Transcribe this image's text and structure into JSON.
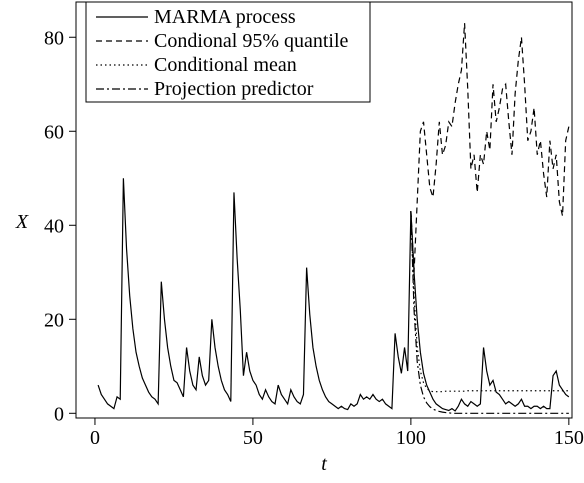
{
  "chart_data": {
    "type": "line",
    "y_label": "X",
    "x_label": "t",
    "x": [
      1,
      2,
      3,
      4,
      5,
      6,
      7,
      8,
      9,
      10,
      11,
      12,
      13,
      14,
      15,
      16,
      17,
      18,
      19,
      20,
      21,
      22,
      23,
      24,
      25,
      26,
      27,
      28,
      29,
      30,
      31,
      32,
      33,
      34,
      35,
      36,
      37,
      38,
      39,
      40,
      41,
      42,
      43,
      44,
      45,
      46,
      47,
      48,
      49,
      50,
      51,
      52,
      53,
      54,
      55,
      56,
      57,
      58,
      59,
      60,
      61,
      62,
      63,
      64,
      65,
      66,
      67,
      68,
      69,
      70,
      71,
      72,
      73,
      74,
      75,
      76,
      77,
      78,
      79,
      80,
      81,
      82,
      83,
      84,
      85,
      86,
      87,
      88,
      89,
      90,
      91,
      92,
      93,
      94,
      95,
      96,
      97,
      98,
      99,
      100,
      101,
      102,
      103,
      104,
      105,
      106,
      107,
      108,
      109,
      110,
      111,
      112,
      113,
      114,
      115,
      116,
      117,
      118,
      119,
      120,
      121,
      122,
      123,
      124,
      125,
      126,
      127,
      128,
      129,
      130,
      131,
      132,
      133,
      134,
      135,
      136,
      137,
      138,
      139,
      140,
      141,
      142,
      143,
      144,
      145,
      146,
      147,
      148,
      149,
      150
    ],
    "series": [
      {
        "name": "MARMA process",
        "color": "#000000",
        "dash": "none",
        "values": [
          6,
          4,
          3,
          2,
          1.5,
          1,
          3.5,
          3,
          50,
          35,
          25,
          18,
          13,
          10,
          7.5,
          6,
          4.5,
          3.5,
          3,
          2,
          28,
          20,
          14,
          10,
          7,
          6.5,
          5,
          3.5,
          14,
          9,
          6,
          5,
          12,
          8,
          6,
          7,
          20,
          14,
          10,
          7,
          5,
          4,
          2.5,
          47,
          33,
          22,
          8,
          13,
          9,
          7,
          6,
          4,
          3,
          5,
          3.5,
          2.5,
          2,
          6,
          4,
          3,
          2,
          5,
          3.5,
          2.5,
          2,
          4,
          31,
          21,
          14,
          10,
          7,
          5,
          3.5,
          2.5,
          2,
          1.5,
          1,
          1.5,
          1,
          0.8,
          2,
          1.5,
          2,
          4,
          3,
          3.5,
          3,
          4,
          3,
          2.5,
          3,
          2,
          1.5,
          1,
          17,
          12,
          8.5,
          14,
          9,
          43,
          30,
          20,
          13,
          8.5,
          6,
          4.5,
          3,
          2,
          1.5,
          1,
          0.8,
          0.6,
          1,
          0.5,
          1.5,
          3,
          2,
          1.5,
          2.5,
          2,
          1.5,
          2,
          14,
          9,
          6,
          7,
          4.5,
          4,
          3,
          2,
          2.5,
          2,
          1.5,
          2,
          3,
          1.5,
          1.5,
          1,
          1.5,
          1.5,
          1,
          1.5,
          1,
          1,
          8,
          9,
          6,
          5,
          4,
          3.5
        ]
      },
      {
        "name": "Condional 95% quantile",
        "color": "#000000",
        "dash": "6,4",
        "x": [
          100,
          101,
          102,
          103,
          104,
          105,
          106,
          107,
          108,
          109,
          110,
          111,
          112,
          113,
          114,
          115,
          116,
          117,
          118,
          119,
          120,
          121,
          122,
          123,
          124,
          125,
          126,
          127,
          128,
          129,
          130,
          131,
          132,
          133,
          134,
          135,
          136,
          137,
          138,
          139,
          140,
          141,
          142,
          143,
          144,
          145,
          146,
          147,
          148,
          149,
          150
        ],
        "values": [
          43,
          30,
          45,
          60,
          62,
          55,
          48,
          46,
          53,
          62,
          55,
          57,
          62,
          61,
          66,
          70,
          73,
          83,
          69,
          52,
          55,
          47,
          55,
          53,
          60,
          56,
          70,
          62,
          65,
          69,
          70,
          62,
          55,
          68,
          75,
          80,
          70,
          58,
          60,
          65,
          55,
          58,
          51,
          46,
          58,
          52,
          55,
          45,
          42,
          58,
          61
        ]
      },
      {
        "name": "Conditional mean",
        "color": "#000000",
        "dash": "1.5,3",
        "x": [
          100,
          101,
          102,
          103,
          104,
          105,
          106,
          107,
          108,
          109,
          110,
          111,
          112,
          113,
          114,
          115,
          116,
          117,
          118,
          119,
          120,
          121,
          122,
          123,
          124,
          125,
          126,
          127,
          128,
          129,
          130,
          131,
          132,
          133,
          134,
          135,
          136,
          137,
          138,
          139,
          140,
          141,
          142,
          143,
          144,
          145,
          146,
          147,
          148,
          149,
          150
        ],
        "values": [
          43,
          25,
          14,
          9,
          6.5,
          5.3,
          4.8,
          4.6,
          4.6,
          4.6,
          4.6,
          4.7,
          4.7,
          4.7,
          4.7,
          4.7,
          4.7,
          4.7,
          4.8,
          4.8,
          4.8,
          4.8,
          4.8,
          4.8,
          4.8,
          4.8,
          4.8,
          4.8,
          4.8,
          4.8,
          4.8,
          4.8,
          4.8,
          4.8,
          4.8,
          4.8,
          4.8,
          4.8,
          4.8,
          4.8,
          4.8,
          4.8,
          4.8,
          4.8,
          4.8,
          4.8,
          4.8,
          4.8,
          4.8,
          4.8,
          4.8
        ]
      },
      {
        "name": "Projection predictor",
        "color": "#000000",
        "dash": "8,3,2,3",
        "x": [
          100,
          101,
          102,
          103,
          104,
          105,
          106,
          107,
          108,
          109,
          110,
          111,
          112,
          113,
          114,
          115,
          116,
          117,
          118,
          119,
          120,
          121,
          122,
          123,
          124,
          125,
          126,
          127,
          128,
          129,
          130,
          131,
          132,
          133,
          134,
          135,
          136,
          137,
          138,
          139,
          140,
          141,
          142,
          143,
          144,
          145,
          146,
          147,
          148,
          149,
          150
        ],
        "values": [
          43,
          22,
          11,
          6,
          3.5,
          2.2,
          1.4,
          0.9,
          0.6,
          0.4,
          0.25,
          0.15,
          0.1,
          0,
          0,
          0,
          0,
          0,
          0,
          0,
          0,
          0,
          0,
          0,
          0,
          0,
          0,
          0,
          0,
          0,
          0,
          0,
          0,
          0,
          0,
          0,
          0,
          0,
          0,
          0,
          0,
          0,
          0,
          0,
          0,
          0,
          0,
          0,
          0,
          0,
          0
        ]
      }
    ],
    "xlim": [
      -6,
      151
    ],
    "ylim": [
      -1,
      87.5
    ],
    "xticks": [
      0,
      50,
      100,
      150
    ],
    "yticks": [
      0,
      20,
      40,
      60,
      80
    ],
    "legend": "top-left"
  }
}
